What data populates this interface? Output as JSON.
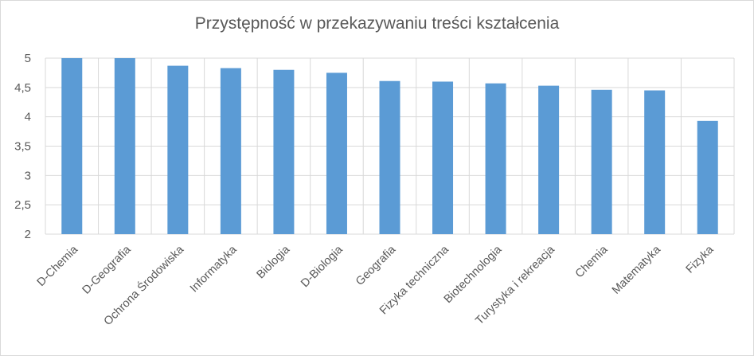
{
  "chart_data": {
    "type": "bar",
    "title": "Przystępność w przekazywaniu treści kształcenia",
    "xlabel": "",
    "ylabel": "",
    "ylim": [
      2,
      5
    ],
    "yticks": [
      "2",
      "2,5",
      "3",
      "3,5",
      "4",
      "4,5",
      "5"
    ],
    "ytick_values": [
      2,
      2.5,
      3,
      3.5,
      4,
      4.5,
      5
    ],
    "grid": true,
    "legend": "none",
    "bar_color": "#5b9bd5",
    "categories": [
      "D-Chemia",
      "D-Geografia",
      "Ochrona Środowiska",
      "Informatyka",
      "Biologia",
      "D-Biologia",
      "Geografia",
      "Fizyka techniczna",
      "Biotechnologia",
      "Turystyka i rekreacja",
      "Chemia",
      "Matematyka",
      "Fizyka"
    ],
    "values": [
      5.0,
      5.0,
      4.87,
      4.83,
      4.8,
      4.75,
      4.61,
      4.6,
      4.57,
      4.53,
      4.46,
      4.45,
      3.93
    ]
  }
}
